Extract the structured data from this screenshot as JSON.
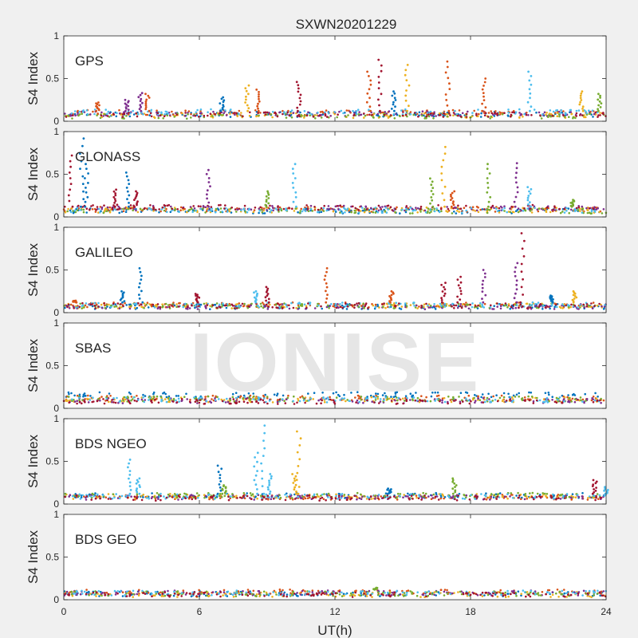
{
  "figure": {
    "title": "SXWN20201229",
    "xlabel": "UT(h)",
    "ylabel": "S4 Index",
    "watermark": "IONISE"
  },
  "chart_data": {
    "type": "scatter",
    "title": "SXWN20201229",
    "xlabel": "UT(h)",
    "ylabel": "S4 Index",
    "xlim": [
      0,
      24
    ],
    "ylim": [
      0,
      1
    ],
    "xticks": [
      0,
      6,
      12,
      18,
      24
    ],
    "yticks": [
      0,
      0.5,
      1
    ],
    "colors": [
      "#0072bd",
      "#d95319",
      "#edb120",
      "#7e2f8e",
      "#77ac30",
      "#4dbeee",
      "#a2142f"
    ],
    "panels": [
      {
        "label": "GPS",
        "baseline": [
          0.08,
          0.1,
          0.07,
          0.09,
          0.06,
          0.11,
          0.08
        ],
        "peaks": [
          {
            "x": 1.5,
            "y": 0.22,
            "c": 1
          },
          {
            "x": 2.8,
            "y": 0.25,
            "c": 3
          },
          {
            "x": 3.4,
            "y": 0.33,
            "c": 3
          },
          {
            "x": 3.7,
            "y": 0.32,
            "c": 1
          },
          {
            "x": 7.0,
            "y": 0.28,
            "c": 0
          },
          {
            "x": 8.1,
            "y": 0.42,
            "c": 2
          },
          {
            "x": 8.6,
            "y": 0.37,
            "c": 1
          },
          {
            "x": 10.4,
            "y": 0.46,
            "c": 6
          },
          {
            "x": 13.5,
            "y": 0.58,
            "c": 1
          },
          {
            "x": 14.0,
            "y": 0.72,
            "c": 6
          },
          {
            "x": 14.6,
            "y": 0.35,
            "c": 0
          },
          {
            "x": 15.2,
            "y": 0.66,
            "c": 2
          },
          {
            "x": 17.0,
            "y": 0.7,
            "c": 1
          },
          {
            "x": 18.6,
            "y": 0.5,
            "c": 1
          },
          {
            "x": 20.6,
            "y": 0.58,
            "c": 5
          },
          {
            "x": 22.9,
            "y": 0.35,
            "c": 2
          },
          {
            "x": 23.7,
            "y": 0.32,
            "c": 4
          }
        ]
      },
      {
        "label": "GLONASS",
        "baseline": [
          0.07,
          0.09,
          0.08,
          0.1,
          0.07,
          0.08,
          0.11
        ],
        "peaks": [
          {
            "x": 0.3,
            "y": 0.72,
            "c": 6
          },
          {
            "x": 0.8,
            "y": 0.92,
            "c": 0
          },
          {
            "x": 1.0,
            "y": 0.62,
            "c": 0
          },
          {
            "x": 2.3,
            "y": 0.32,
            "c": 6
          },
          {
            "x": 2.8,
            "y": 0.52,
            "c": 0
          },
          {
            "x": 3.2,
            "y": 0.3,
            "c": 6
          },
          {
            "x": 6.4,
            "y": 0.55,
            "c": 3
          },
          {
            "x": 9.0,
            "y": 0.3,
            "c": 4
          },
          {
            "x": 10.2,
            "y": 0.62,
            "c": 5
          },
          {
            "x": 16.3,
            "y": 0.45,
            "c": 4
          },
          {
            "x": 16.8,
            "y": 0.82,
            "c": 2
          },
          {
            "x": 17.2,
            "y": 0.3,
            "c": 1
          },
          {
            "x": 18.8,
            "y": 0.62,
            "c": 4
          },
          {
            "x": 20.0,
            "y": 0.63,
            "c": 3
          },
          {
            "x": 20.6,
            "y": 0.35,
            "c": 5
          },
          {
            "x": 22.5,
            "y": 0.2,
            "c": 4
          }
        ]
      },
      {
        "label": "GALILEO",
        "baseline": [
          0.07,
          0.09,
          0.08,
          0.07,
          0.08,
          0.09,
          0.08
        ],
        "peaks": [
          {
            "x": 0.5,
            "y": 0.14,
            "c": 1
          },
          {
            "x": 2.6,
            "y": 0.25,
            "c": 0
          },
          {
            "x": 3.4,
            "y": 0.52,
            "c": 0
          },
          {
            "x": 5.9,
            "y": 0.22,
            "c": 6
          },
          {
            "x": 8.5,
            "y": 0.25,
            "c": 5
          },
          {
            "x": 9.0,
            "y": 0.3,
            "c": 6
          },
          {
            "x": 11.6,
            "y": 0.52,
            "c": 1
          },
          {
            "x": 14.5,
            "y": 0.25,
            "c": 1
          },
          {
            "x": 16.8,
            "y": 0.35,
            "c": 6
          },
          {
            "x": 17.5,
            "y": 0.42,
            "c": 6
          },
          {
            "x": 18.6,
            "y": 0.5,
            "c": 3
          },
          {
            "x": 20.0,
            "y": 0.58,
            "c": 3
          },
          {
            "x": 20.3,
            "y": 0.93,
            "c": 6
          },
          {
            "x": 21.6,
            "y": 0.2,
            "c": 0
          },
          {
            "x": 22.6,
            "y": 0.25,
            "c": 2
          }
        ]
      },
      {
        "label": "SBAS",
        "baseline": [
          0.16,
          0.12,
          0.1,
          0.09,
          0.11,
          0.1,
          0.08
        ],
        "peaks": []
      },
      {
        "label": "BDS NGEO",
        "baseline": [
          0.1,
          0.08,
          0.09,
          0.08,
          0.1,
          0.09,
          0.07
        ],
        "peaks": [
          {
            "x": 2.9,
            "y": 0.52,
            "c": 5
          },
          {
            "x": 3.3,
            "y": 0.3,
            "c": 5
          },
          {
            "x": 6.9,
            "y": 0.45,
            "c": 0
          },
          {
            "x": 7.1,
            "y": 0.22,
            "c": 4
          },
          {
            "x": 8.5,
            "y": 0.6,
            "c": 5
          },
          {
            "x": 8.8,
            "y": 0.92,
            "c": 5
          },
          {
            "x": 9.1,
            "y": 0.35,
            "c": 5
          },
          {
            "x": 10.4,
            "y": 0.85,
            "c": 2
          },
          {
            "x": 10.2,
            "y": 0.35,
            "c": 2
          },
          {
            "x": 14.4,
            "y": 0.18,
            "c": 0
          },
          {
            "x": 17.3,
            "y": 0.3,
            "c": 4
          },
          {
            "x": 23.5,
            "y": 0.28,
            "c": 6
          },
          {
            "x": 24.0,
            "y": 0.2,
            "c": 5
          }
        ]
      },
      {
        "label": "BDS GEO",
        "baseline": [
          0.07,
          0.09,
          0.06,
          0.08,
          0.07,
          0.08,
          0.06
        ],
        "peaks": [
          {
            "x": 13.8,
            "y": 0.14,
            "c": 4
          }
        ]
      }
    ]
  }
}
